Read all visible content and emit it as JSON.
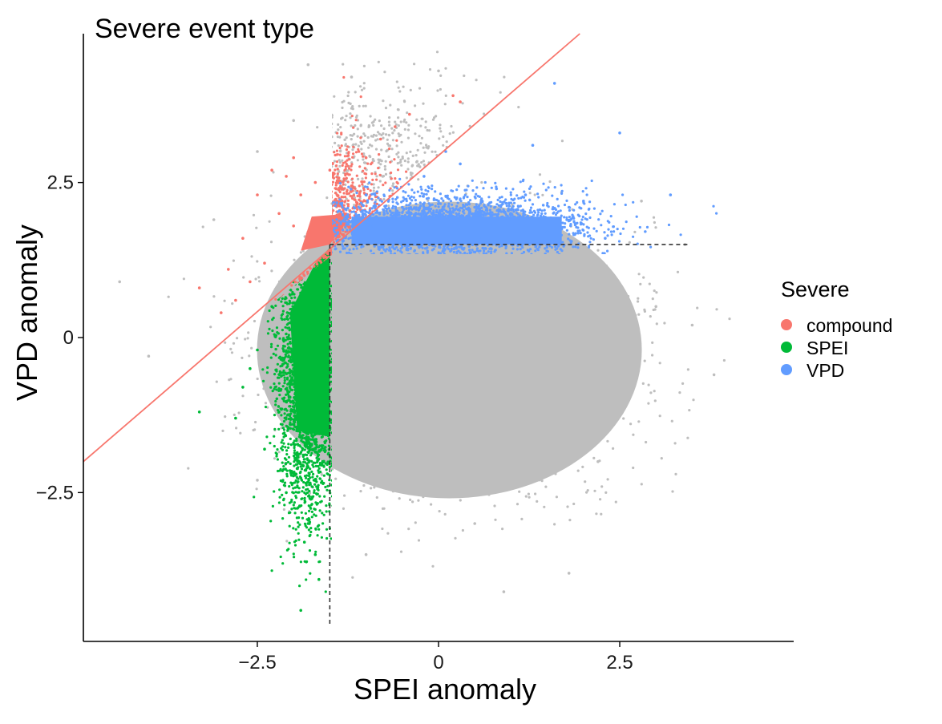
{
  "chart_data": {
    "type": "scatter",
    "title": "Severe event type",
    "xlabel": "SPEI anomaly",
    "ylabel": "VPD anomaly",
    "xlim": [
      -4.9,
      4.9
    ],
    "ylim": [
      -4.9,
      4.9
    ],
    "x_ticks": [
      -2.5,
      0,
      2.5
    ],
    "x_tick_labels": [
      "−2.5",
      "0",
      "2.5"
    ],
    "y_ticks": [
      -2.5,
      0,
      2.5
    ],
    "y_tick_labels": [
      "−2.5",
      "0",
      "2.5"
    ],
    "grid": false,
    "legend": {
      "title": "Severe",
      "placement": "right",
      "entries": [
        {
          "label": "compound",
          "color": "#F8766D"
        },
        {
          "label": "SPEI",
          "color": "#00BA38"
        },
        {
          "label": "VPD",
          "color": "#619CFF"
        }
      ]
    },
    "thresholds": {
      "spei": -1.5,
      "vpd": 1.5
    },
    "reference_line": {
      "color": "#F8766D",
      "from": [
        -4.9,
        -2.0
      ],
      "to": [
        1.95,
        4.9
      ]
    },
    "background_color": "#BEBEBE",
    "series": [
      {
        "name": "compound",
        "color": "#F8766D",
        "points": [
          [
            -2.2,
            2.0
          ],
          [
            -2.0,
            1.8
          ],
          [
            -1.8,
            1.7
          ],
          [
            -1.6,
            1.9
          ],
          [
            -1.4,
            2.2
          ],
          [
            -1.2,
            2.4
          ],
          [
            -2.4,
            1.2
          ],
          [
            -2.6,
            0.9
          ],
          [
            -2.8,
            0.6
          ],
          [
            -3.0,
            0.4
          ],
          [
            -2.1,
            2.6
          ],
          [
            -1.9,
            2.3
          ],
          [
            -1.5,
            2.7
          ],
          [
            -1.0,
            2.9
          ],
          [
            -0.8,
            3.2
          ],
          [
            -0.6,
            3.4
          ],
          [
            -0.4,
            3.6
          ],
          [
            0.2,
            3.9
          ],
          [
            0.3,
            3.8
          ],
          [
            -2.3,
            2.7
          ],
          [
            -2.5,
            2.3
          ],
          [
            -2.7,
            1.6
          ],
          [
            -2.9,
            1.1
          ],
          [
            -3.3,
            0.8
          ],
          [
            -1.7,
            2.5
          ],
          [
            -1.3,
            2.0
          ],
          [
            -1.1,
            3.0
          ],
          [
            -2.0,
            2.9
          ]
        ]
      },
      {
        "name": "SPEI",
        "color": "#00BA38",
        "points": [
          [
            -1.8,
            0.0
          ],
          [
            -2.0,
            -0.5
          ],
          [
            -1.7,
            -1.0
          ],
          [
            -2.2,
            -1.2
          ],
          [
            -1.9,
            -1.6
          ],
          [
            -1.6,
            -2.0
          ],
          [
            -2.1,
            -2.5
          ],
          [
            -1.8,
            -3.0
          ],
          [
            -1.7,
            -3.5
          ],
          [
            -1.9,
            -4.4
          ],
          [
            -2.3,
            0.5
          ],
          [
            -2.5,
            -0.2
          ],
          [
            -2.7,
            -0.8
          ],
          [
            -3.3,
            -1.2
          ],
          [
            -1.6,
            1.2
          ],
          [
            -2.0,
            0.9
          ],
          [
            -2.4,
            -1.8
          ],
          [
            -1.75,
            -2.6
          ],
          [
            -1.85,
            -3.3
          ],
          [
            -1.65,
            -3.9
          ],
          [
            -2.6,
            -0.5
          ],
          [
            -1.55,
            0.6
          ],
          [
            -2.8,
            -1.3
          ]
        ]
      },
      {
        "name": "VPD",
        "color": "#619CFF",
        "points": [
          [
            -0.9,
            1.8
          ],
          [
            -0.5,
            2.1
          ],
          [
            0.0,
            2.2
          ],
          [
            0.5,
            2.0
          ],
          [
            1.0,
            1.9
          ],
          [
            1.5,
            1.7
          ],
          [
            -0.2,
            2.6
          ],
          [
            0.3,
            2.8
          ],
          [
            0.8,
            2.4
          ],
          [
            1.2,
            2.3
          ],
          [
            1.8,
            2.1
          ],
          [
            2.3,
            1.6
          ],
          [
            -0.7,
            1.6
          ],
          [
            0.1,
            3.0
          ],
          [
            1.3,
            3.1
          ],
          [
            1.6,
            4.1
          ],
          [
            2.5,
            3.3
          ],
          [
            3.2,
            2.3
          ],
          [
            -1.0,
            2.3
          ],
          [
            0.6,
            1.6
          ],
          [
            2.0,
            2.2
          ],
          [
            -0.3,
            1.7
          ]
        ]
      },
      {
        "name": "",
        "color": "#BEBEBE",
        "points": [
          [
            0.0,
            0.0
          ],
          [
            -1.0,
            -1.0
          ],
          [
            1.0,
            1.0
          ],
          [
            1.5,
            -0.5
          ],
          [
            -0.5,
            -2.0
          ],
          [
            2.5,
            -1.0
          ],
          [
            -1.2,
            1.2
          ],
          [
            3.0,
            0.5
          ],
          [
            0.5,
            -3.0
          ],
          [
            -2.0,
            3.5
          ],
          [
            -1.2,
            4.2
          ],
          [
            0.0,
            4.3
          ],
          [
            -1.8,
            4.4
          ],
          [
            -2.5,
            3.0
          ],
          [
            3.8,
            -0.6
          ],
          [
            3.5,
            0.2
          ],
          [
            2.2,
            -2.0
          ],
          [
            1.8,
            -3.8
          ],
          [
            -4.4,
            0.9
          ],
          [
            -4.0,
            -0.3
          ],
          [
            -2.5,
            -2.3
          ],
          [
            -1.0,
            -3.5
          ],
          [
            0.9,
            -4.1
          ],
          [
            3.4,
            1.5
          ],
          [
            -3.1,
            1.9
          ],
          [
            2.8,
            2.2
          ]
        ]
      }
    ]
  }
}
